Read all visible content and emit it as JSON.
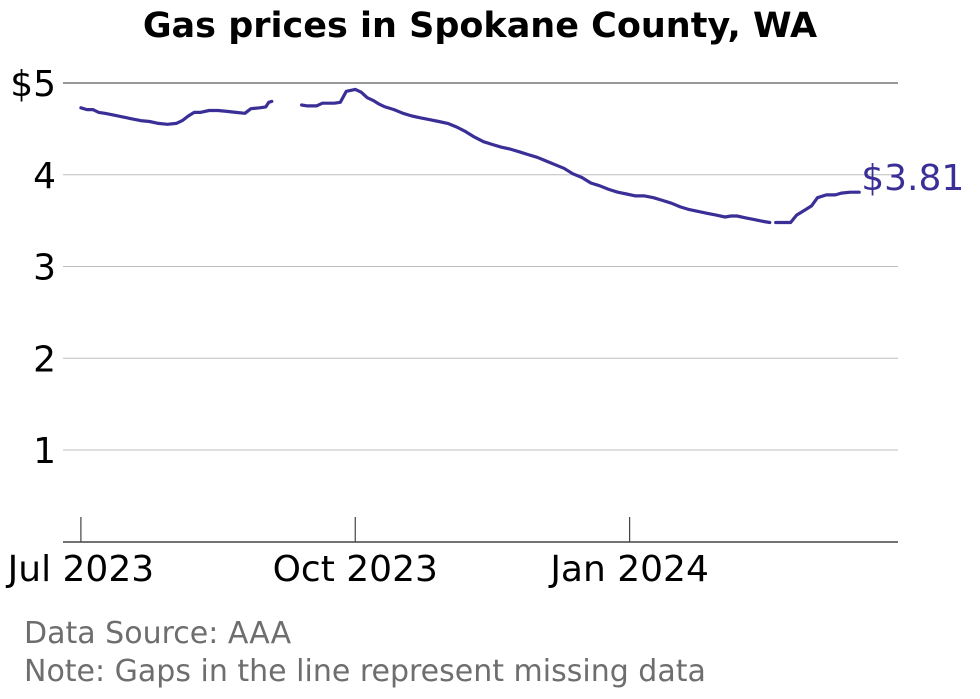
{
  "chart_data": {
    "type": "line",
    "title": "Gas prices in Spokane County, WA",
    "xlabel": "",
    "ylabel": "",
    "ylim": [
      0,
      5
    ],
    "xlim": [
      "2023-06-25",
      "2024-03-31"
    ],
    "y_ticks": [
      1,
      2,
      3,
      4,
      5
    ],
    "y_tick_labels": [
      "1",
      "2",
      "3",
      "4",
      "$5"
    ],
    "x_ticks": [
      "2023-07-01",
      "2023-10-01",
      "2024-01-01"
    ],
    "x_tick_labels": [
      "Jul 2023",
      "Oct 2023",
      "Jan 2024"
    ],
    "grid": "horizontal",
    "line_color": "#3a2f96",
    "end_label": "$3.81",
    "series": [
      {
        "segments": [
          [
            [
              "2023-07-01",
              4.73
            ],
            [
              "2023-07-03",
              4.71
            ],
            [
              "2023-07-05",
              4.71
            ],
            [
              "2023-07-07",
              4.68
            ],
            [
              "2023-07-09",
              4.67
            ],
            [
              "2023-07-12",
              4.65
            ],
            [
              "2023-07-15",
              4.63
            ],
            [
              "2023-07-18",
              4.61
            ],
            [
              "2023-07-21",
              4.59
            ],
            [
              "2023-07-24",
              4.58
            ],
            [
              "2023-07-27",
              4.56
            ],
            [
              "2023-07-30",
              4.55
            ],
            [
              "2023-08-02",
              4.56
            ],
            [
              "2023-08-04",
              4.59
            ],
            [
              "2023-08-06",
              4.64
            ],
            [
              "2023-08-08",
              4.68
            ],
            [
              "2023-08-10",
              4.68
            ],
            [
              "2023-08-13",
              4.7
            ],
            [
              "2023-08-16",
              4.7
            ],
            [
              "2023-08-19",
              4.69
            ],
            [
              "2023-08-22",
              4.68
            ],
            [
              "2023-08-25",
              4.67
            ],
            [
              "2023-08-27",
              4.72
            ],
            [
              "2023-08-30",
              4.73
            ],
            [
              "2023-09-01",
              4.74
            ],
            [
              "2023-09-02",
              4.79
            ],
            [
              "2023-09-03",
              4.8
            ]
          ],
          [
            [
              "2023-09-13",
              4.76
            ],
            [
              "2023-09-15",
              4.75
            ],
            [
              "2023-09-18",
              4.75
            ],
            [
              "2023-09-20",
              4.78
            ],
            [
              "2023-09-22",
              4.78
            ],
            [
              "2023-09-24",
              4.78
            ],
            [
              "2023-09-26",
              4.79
            ],
            [
              "2023-09-28",
              4.91
            ],
            [
              "2023-10-01",
              4.93
            ],
            [
              "2023-10-03",
              4.9
            ],
            [
              "2023-10-05",
              4.84
            ],
            [
              "2023-10-07",
              4.81
            ],
            [
              "2023-10-09",
              4.77
            ],
            [
              "2023-10-11",
              4.74
            ],
            [
              "2023-10-14",
              4.71
            ],
            [
              "2023-10-17",
              4.67
            ],
            [
              "2023-10-20",
              4.64
            ],
            [
              "2023-10-23",
              4.62
            ],
            [
              "2023-10-26",
              4.6
            ],
            [
              "2023-10-29",
              4.58
            ],
            [
              "2023-11-01",
              4.56
            ],
            [
              "2023-11-04",
              4.52
            ],
            [
              "2023-11-07",
              4.47
            ],
            [
              "2023-11-10",
              4.41
            ],
            [
              "2023-11-13",
              4.36
            ],
            [
              "2023-11-16",
              4.33
            ],
            [
              "2023-11-19",
              4.3
            ],
            [
              "2023-11-22",
              4.28
            ],
            [
              "2023-11-25",
              4.25
            ],
            [
              "2023-11-28",
              4.22
            ],
            [
              "2023-12-01",
              4.19
            ],
            [
              "2023-12-04",
              4.15
            ],
            [
              "2023-12-07",
              4.11
            ],
            [
              "2023-12-10",
              4.07
            ],
            [
              "2023-12-13",
              4.01
            ],
            [
              "2023-12-16",
              3.97
            ],
            [
              "2023-12-19",
              3.91
            ],
            [
              "2023-12-22",
              3.88
            ],
            [
              "2023-12-25",
              3.84
            ],
            [
              "2023-12-28",
              3.81
            ],
            [
              "2023-12-31",
              3.79
            ],
            [
              "2024-01-03",
              3.77
            ],
            [
              "2024-01-06",
              3.77
            ],
            [
              "2024-01-09",
              3.75
            ],
            [
              "2024-01-12",
              3.72
            ],
            [
              "2024-01-15",
              3.69
            ],
            [
              "2024-01-18",
              3.65
            ],
            [
              "2024-01-21",
              3.62
            ],
            [
              "2024-01-24",
              3.6
            ],
            [
              "2024-01-27",
              3.58
            ],
            [
              "2024-01-30",
              3.56
            ],
            [
              "2024-02-02",
              3.54
            ],
            [
              "2024-02-04",
              3.55
            ],
            [
              "2024-02-06",
              3.55
            ],
            [
              "2024-02-09",
              3.53
            ],
            [
              "2024-02-12",
              3.51
            ],
            [
              "2024-02-15",
              3.49
            ],
            [
              "2024-02-17",
              3.48
            ]
          ],
          [
            [
              "2024-02-19",
              3.48
            ],
            [
              "2024-02-22",
              3.48
            ],
            [
              "2024-02-24",
              3.48
            ],
            [
              "2024-02-26",
              3.56
            ],
            [
              "2024-02-29",
              3.62
            ],
            [
              "2024-03-02",
              3.66
            ],
            [
              "2024-03-04",
              3.75
            ],
            [
              "2024-03-07",
              3.78
            ],
            [
              "2024-03-10",
              3.78
            ],
            [
              "2024-03-12",
              3.8
            ],
            [
              "2024-03-15",
              3.81
            ],
            [
              "2024-03-18",
              3.81
            ]
          ]
        ]
      }
    ]
  },
  "footer": {
    "source": "Data Source: AAA",
    "note": "Note: Gaps in the line represent missing data"
  }
}
